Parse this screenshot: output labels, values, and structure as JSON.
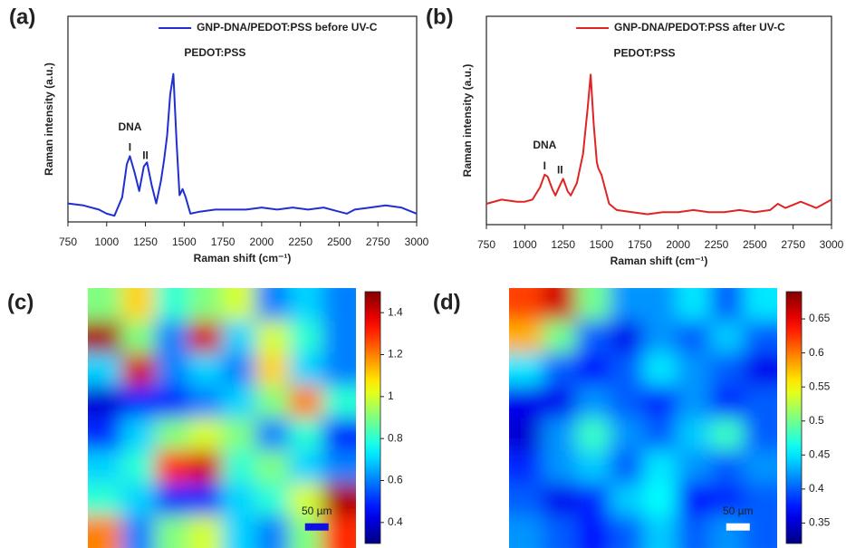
{
  "chart_data": [
    {
      "type": "line",
      "panel_label": "(a)",
      "xlabel": "Raman shift (cm⁻¹)",
      "ylabel": "Raman intensity (a.u.)",
      "x": [
        750,
        850,
        950,
        1000,
        1050,
        1100,
        1130,
        1150,
        1180,
        1210,
        1240,
        1260,
        1290,
        1320,
        1350,
        1370,
        1390,
        1410,
        1430,
        1450,
        1470,
        1490,
        1510,
        1540,
        1600,
        1700,
        1800,
        1900,
        2000,
        2100,
        2200,
        2300,
        2400,
        2500,
        2550,
        2600,
        2700,
        2800,
        2900,
        3000
      ],
      "series": [
        {
          "name": "GNP-DNA/PEDOT:PSS before UV-C",
          "color": "#1f2fd0",
          "values": [
            9,
            8,
            6,
            4,
            3,
            12,
            28,
            32,
            24,
            15,
            27,
            29,
            18,
            9,
            20,
            30,
            42,
            62,
            72,
            40,
            13,
            16,
            12,
            4,
            5,
            6,
            6,
            6,
            7,
            6,
            7,
            6,
            7,
            5,
            4,
            6,
            7,
            8,
            7,
            4
          ]
        }
      ],
      "xlim": [
        750,
        3000
      ],
      "ylim": [
        0,
        100
      ],
      "xticks": [
        750,
        1000,
        1250,
        1500,
        1750,
        2000,
        2250,
        2500,
        2750,
        3000
      ],
      "annotations": [
        "DNA",
        "I",
        "II",
        "PEDOT:PSS"
      ]
    },
    {
      "type": "line",
      "panel_label": "(b)",
      "xlabel": "Raman shift (cm⁻¹)",
      "ylabel": "Raman intensity (a.u.)",
      "x": [
        750,
        850,
        950,
        1000,
        1050,
        1100,
        1130,
        1150,
        1180,
        1200,
        1230,
        1250,
        1280,
        1300,
        1340,
        1380,
        1410,
        1430,
        1450,
        1470,
        1480,
        1500,
        1550,
        1600,
        1700,
        1800,
        1900,
        2000,
        2100,
        2200,
        2300,
        2400,
        2500,
        2600,
        2650,
        2700,
        2800,
        2900,
        3000
      ],
      "series": [
        {
          "name": "GNP-DNA/PEDOT:PSS after UV-C",
          "color": "#e02424",
          "values": [
            10,
            12,
            11,
            11,
            12,
            18,
            24,
            23,
            17,
            14,
            19,
            22,
            16,
            14,
            20,
            34,
            56,
            72,
            48,
            30,
            27,
            24,
            10,
            7,
            6,
            5,
            6,
            6,
            7,
            6,
            6,
            7,
            6,
            7,
            10,
            8,
            11,
            8,
            12
          ]
        }
      ],
      "xlim": [
        750,
        3000
      ],
      "ylim": [
        0,
        100
      ],
      "xticks": [
        750,
        1000,
        1250,
        1500,
        1750,
        2000,
        2250,
        2500,
        2750,
        3000
      ],
      "annotations": [
        "DNA",
        "I",
        "II",
        "PEDOT:PSS"
      ]
    },
    {
      "type": "heatmap",
      "panel_label": "(c)",
      "colormap": "jet",
      "scale_bar": "50 µm",
      "scale_bar_color": "#1010e0",
      "zlim": [
        0.3,
        1.5
      ],
      "zticks": [
        0.4,
        0.6,
        0.8,
        1.0,
        1.2,
        1.4
      ],
      "values": [
        [
          0.9,
          1.1,
          0.8,
          0.9,
          1.0,
          0.6,
          0.7,
          0.6
        ],
        [
          1.45,
          0.9,
          0.6,
          1.4,
          0.7,
          1.0,
          0.8,
          0.6
        ],
        [
          0.7,
          1.4,
          0.6,
          0.7,
          0.6,
          1.1,
          0.7,
          0.6
        ],
        [
          0.4,
          0.5,
          0.5,
          0.6,
          0.7,
          0.9,
          1.2,
          0.8
        ],
        [
          0.5,
          0.7,
          0.9,
          1.0,
          0.9,
          0.6,
          0.8,
          0.5
        ],
        [
          0.7,
          0.8,
          1.3,
          1.4,
          0.8,
          0.9,
          0.7,
          0.6
        ],
        [
          0.8,
          0.7,
          0.5,
          0.5,
          0.7,
          0.8,
          1.0,
          1.45
        ],
        [
          1.2,
          0.6,
          0.9,
          1.0,
          0.7,
          0.6,
          0.9,
          1.3
        ]
      ]
    },
    {
      "type": "heatmap",
      "panel_label": "(d)",
      "colormap": "jet",
      "scale_bar": "50 µm",
      "scale_bar_color": "#ffffff",
      "zlim": [
        0.32,
        0.69
      ],
      "zticks": [
        0.35,
        0.4,
        0.45,
        0.5,
        0.55,
        0.6,
        0.65
      ],
      "values": [
        [
          0.62,
          0.66,
          0.5,
          0.42,
          0.42,
          0.45,
          0.4,
          0.45
        ],
        [
          0.58,
          0.5,
          0.4,
          0.36,
          0.42,
          0.4,
          0.44,
          0.4
        ],
        [
          0.45,
          0.4,
          0.37,
          0.4,
          0.45,
          0.42,
          0.4,
          0.36
        ],
        [
          0.36,
          0.36,
          0.42,
          0.4,
          0.38,
          0.42,
          0.38,
          0.4
        ],
        [
          0.35,
          0.42,
          0.48,
          0.42,
          0.4,
          0.44,
          0.48,
          0.4
        ],
        [
          0.38,
          0.42,
          0.44,
          0.4,
          0.45,
          0.42,
          0.4,
          0.42
        ],
        [
          0.4,
          0.36,
          0.38,
          0.44,
          0.46,
          0.37,
          0.38,
          0.4
        ],
        [
          0.42,
          0.4,
          0.37,
          0.4,
          0.44,
          0.4,
          0.42,
          0.4
        ]
      ]
    }
  ]
}
